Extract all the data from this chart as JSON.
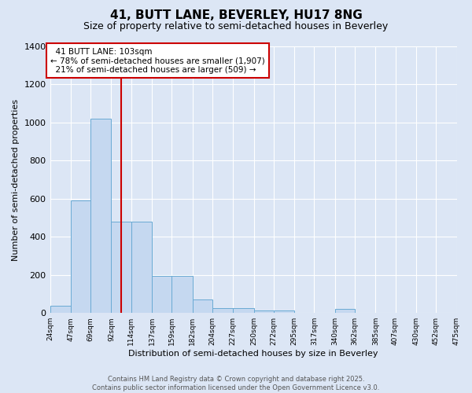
{
  "title": "41, BUTT LANE, BEVERLEY, HU17 8NG",
  "subtitle": "Size of property relative to semi-detached houses in Beverley",
  "xlabel": "Distribution of semi-detached houses by size in Beverley",
  "ylabel": "Number of semi-detached properties",
  "bin_edges": [
    24,
    47,
    69,
    92,
    114,
    137,
    159,
    182,
    204,
    227,
    250,
    272,
    295,
    317,
    340,
    362,
    385,
    407,
    430,
    452,
    475
  ],
  "bin_counts": [
    40,
    590,
    1020,
    480,
    480,
    195,
    195,
    70,
    25,
    25,
    15,
    15,
    0,
    0,
    20,
    0,
    0,
    0,
    0,
    0
  ],
  "property_size": 103,
  "property_label": "41 BUTT LANE: 103sqm",
  "pct_smaller": 78,
  "pct_smaller_count": 1907,
  "pct_larger": 21,
  "pct_larger_count": 509,
  "bar_color": "#c5d8f0",
  "bar_edge_color": "#6aaad4",
  "vline_color": "#cc0000",
  "annotation_box_edge_color": "#cc0000",
  "background_color": "#dce6f5",
  "ylim": [
    0,
    1400
  ],
  "yticks": [
    0,
    200,
    400,
    600,
    800,
    1000,
    1200,
    1400
  ],
  "grid_color": "#ffffff",
  "title_fontsize": 11,
  "subtitle_fontsize": 9,
  "footer_line1": "Contains HM Land Registry data © Crown copyright and database right 2025.",
  "footer_line2": "Contains public sector information licensed under the Open Government Licence v3.0."
}
